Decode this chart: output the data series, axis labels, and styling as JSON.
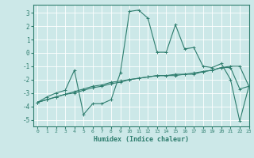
{
  "xlabel": "Humidex (Indice chaleur)",
  "xlim": [
    -0.5,
    23
  ],
  "ylim": [
    -5.5,
    3.6
  ],
  "yticks": [
    -5,
    -4,
    -3,
    -2,
    -1,
    0,
    1,
    2,
    3
  ],
  "xticks": [
    0,
    1,
    2,
    3,
    4,
    5,
    6,
    7,
    8,
    9,
    10,
    11,
    12,
    13,
    14,
    15,
    16,
    17,
    18,
    19,
    20,
    21,
    22,
    23
  ],
  "background_color": "#cce8e8",
  "grid_color": "#ffffff",
  "line_color": "#2e7d6e",
  "line1_x": [
    0,
    1,
    2,
    3,
    4,
    5,
    6,
    7,
    8,
    9,
    10,
    11,
    12,
    13,
    14,
    15,
    16,
    17,
    18,
    19,
    20,
    21,
    22,
    23
  ],
  "line1_y": [
    -3.7,
    -3.3,
    -3.0,
    -2.8,
    -1.3,
    -4.6,
    -3.8,
    -3.8,
    -3.5,
    -1.5,
    3.1,
    3.2,
    2.6,
    0.05,
    0.05,
    2.1,
    0.3,
    0.4,
    -1.0,
    -1.1,
    -0.8,
    -2.0,
    -5.1,
    -2.5
  ],
  "line2_x": [
    0,
    1,
    2,
    3,
    4,
    5,
    6,
    7,
    8,
    9,
    10,
    11,
    12,
    13,
    14,
    15,
    16,
    17,
    18,
    19,
    20,
    21,
    22,
    23
  ],
  "line2_y": [
    -3.7,
    -3.5,
    -3.3,
    -3.1,
    -3.0,
    -2.8,
    -2.6,
    -2.5,
    -2.3,
    -2.2,
    -2.0,
    -1.9,
    -1.8,
    -1.7,
    -1.7,
    -1.6,
    -1.6,
    -1.5,
    -1.4,
    -1.3,
    -1.1,
    -1.1,
    -2.7,
    -2.5
  ],
  "line3_x": [
    0,
    1,
    2,
    3,
    4,
    5,
    6,
    7,
    8,
    9,
    10,
    11,
    12,
    13,
    14,
    15,
    16,
    17,
    18,
    19,
    20,
    21,
    22,
    23
  ],
  "line3_y": [
    -3.7,
    -3.5,
    -3.3,
    -3.1,
    -2.9,
    -2.7,
    -2.5,
    -2.4,
    -2.2,
    -2.1,
    -2.0,
    -1.9,
    -1.8,
    -1.7,
    -1.7,
    -1.7,
    -1.6,
    -1.6,
    -1.4,
    -1.3,
    -1.1,
    -1.0,
    -1.0,
    -2.5
  ]
}
